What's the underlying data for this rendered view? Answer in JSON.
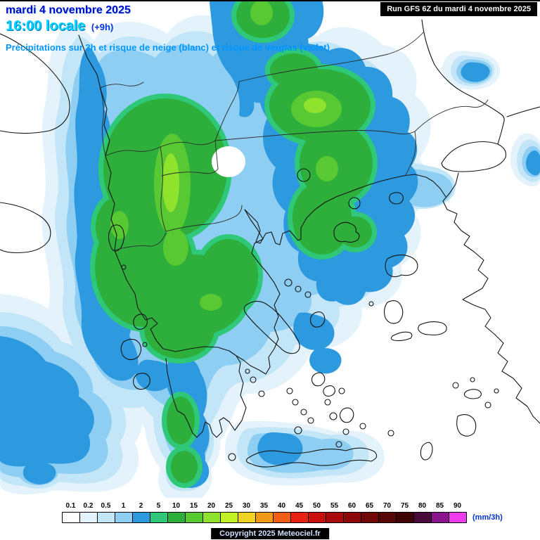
{
  "header": {
    "date_line": "mardi 4 novembre 2025",
    "time_line": "16:00 locale",
    "time_offset": "(+9h)",
    "description": "Précipitations sur 3h et risque de neige (blanc) et risque de verglas (violet)"
  },
  "run_box": {
    "label": "Run GFS 6Z du mardi 4 novembre 2025"
  },
  "legend": {
    "values": [
      "0.1",
      "0.2",
      "0.5",
      "1",
      "2",
      "5",
      "10",
      "15",
      "20",
      "25",
      "30",
      "35",
      "40",
      "45",
      "50",
      "55",
      "60",
      "65",
      "70",
      "75",
      "80",
      "85",
      "90"
    ],
    "colors": [
      "#ffffff",
      "#e3f2fb",
      "#c2e5f8",
      "#8ecef2",
      "#2d9ae0",
      "#2ec878",
      "#2eaf3c",
      "#58c932",
      "#8fe32c",
      "#c2ef28",
      "#efd31f",
      "#f29a18",
      "#ef5e14",
      "#e62212",
      "#c8100e",
      "#a80b0b",
      "#8c0808",
      "#700606",
      "#570404",
      "#400303",
      "#4a0a3c",
      "#8a148a",
      "#ee3cee"
    ],
    "unit": "(mm/3h)"
  },
  "footer": {
    "copyright": "Copyright 2025 Meteociel.fr"
  },
  "colors": {
    "date_text": "#0009c8",
    "time_text": "#00d4ff",
    "description_text": "#0096ff",
    "run_box_bg": "#000000",
    "run_box_text": "#ffffff",
    "sea_land": "#ffffff",
    "coastline": "#141414"
  }
}
